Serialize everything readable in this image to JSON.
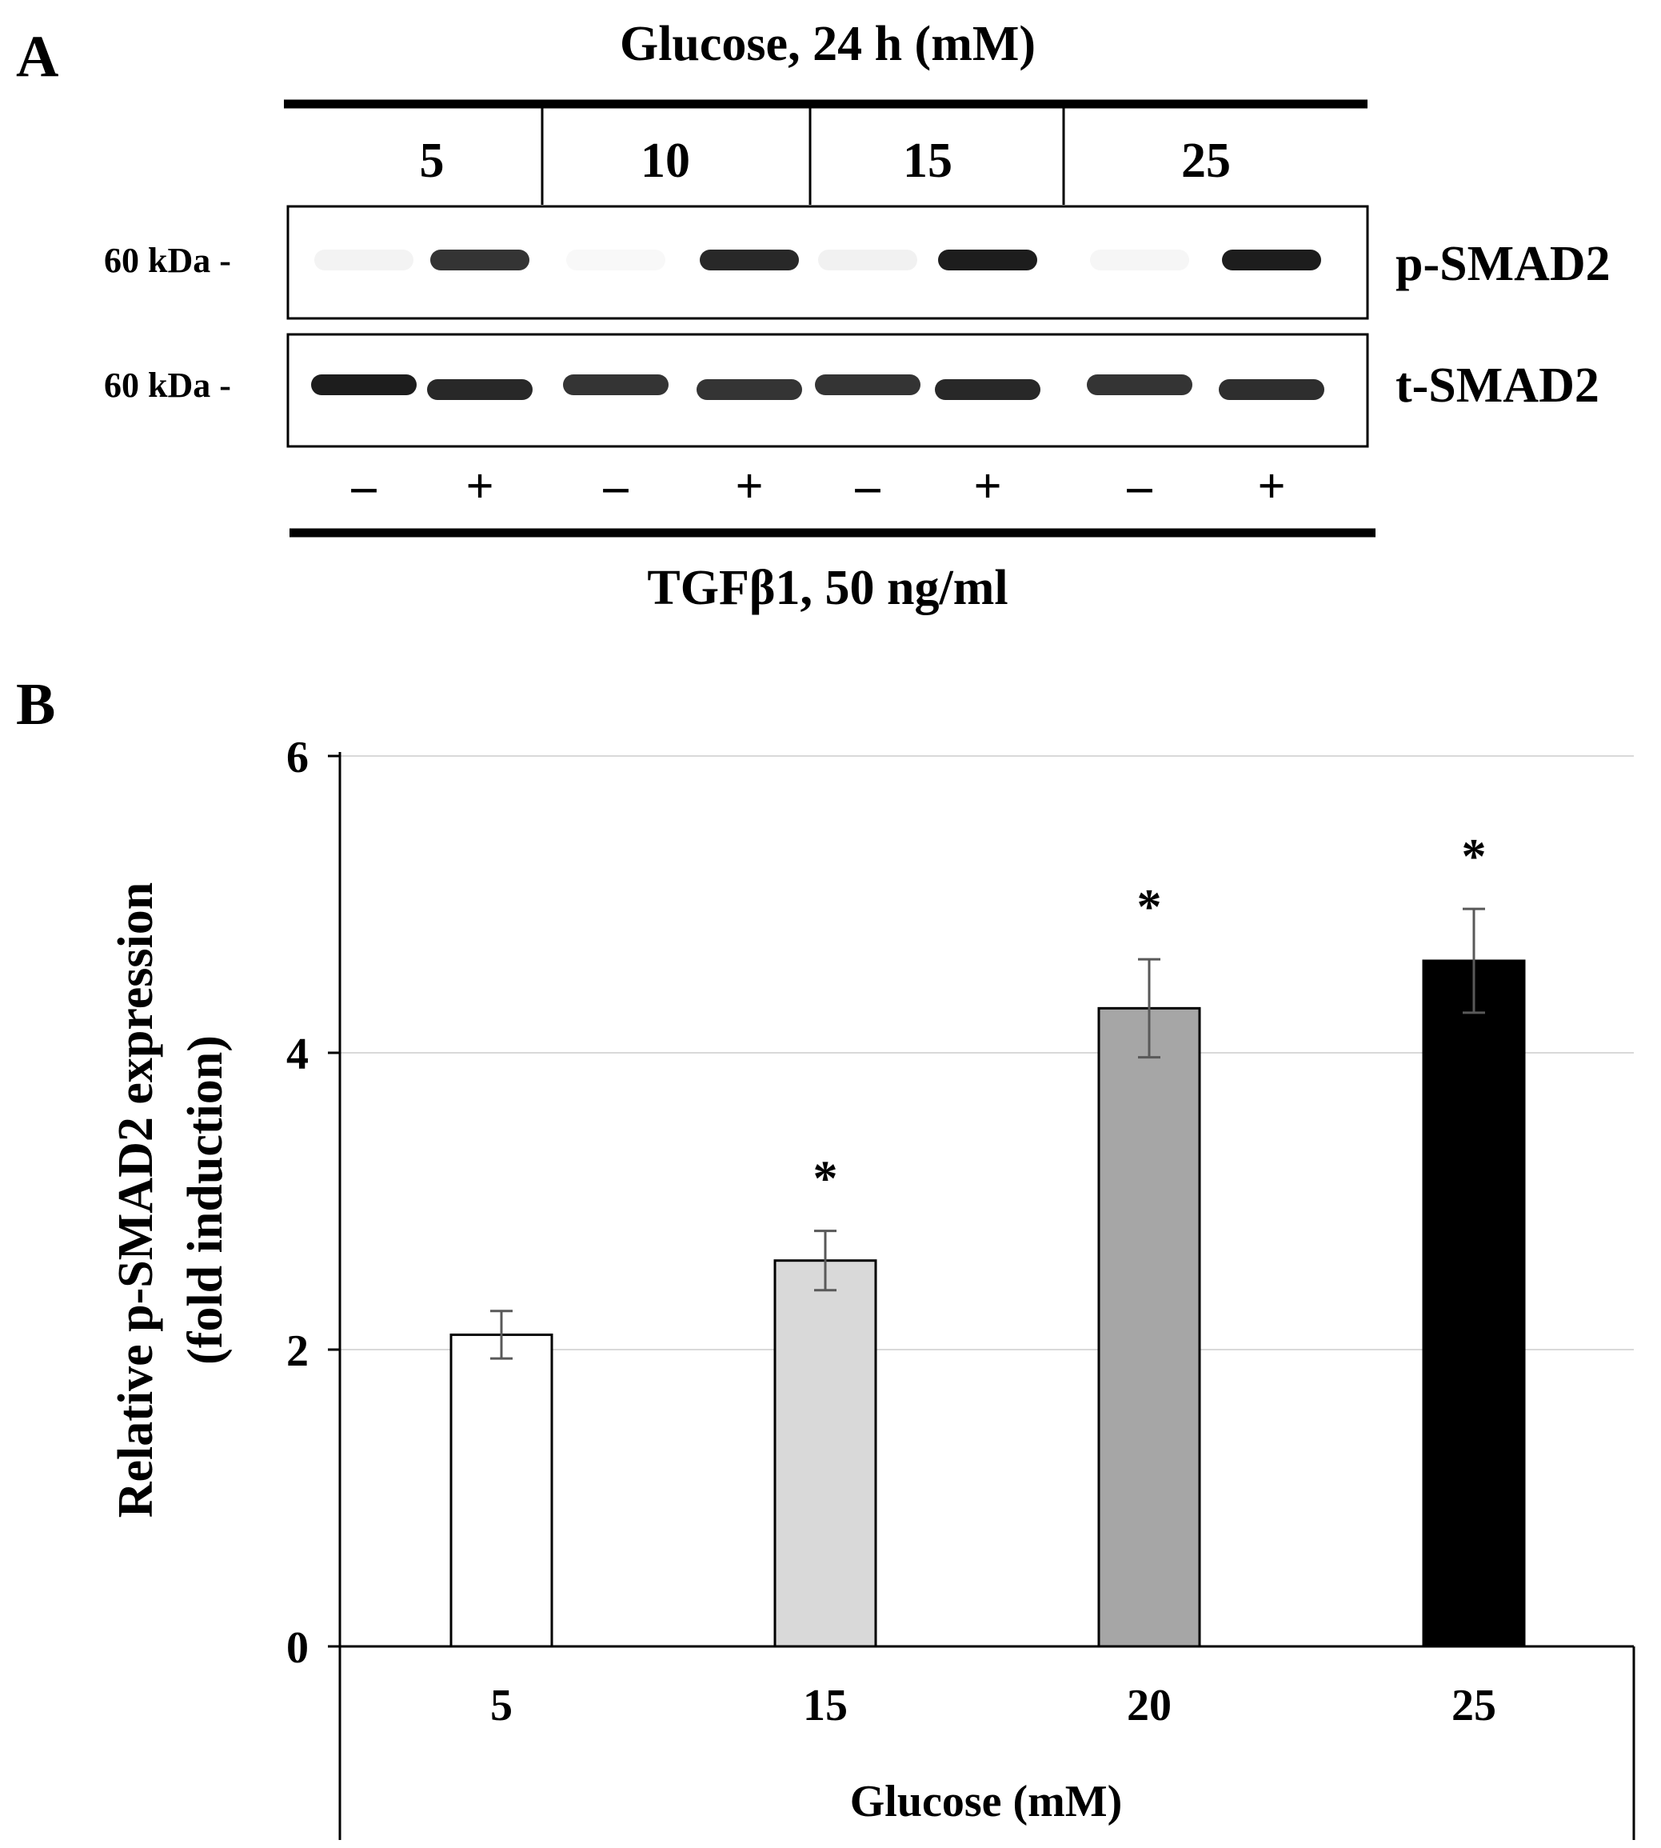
{
  "panel_a": {
    "label": "A",
    "top_title": "Glucose, 24 h (mM)",
    "glucose_groups": [
      "5",
      "10",
      "15",
      "25"
    ],
    "rows": [
      {
        "marker": "60 kDa -",
        "name": "p-SMAD2"
      },
      {
        "marker": "60 kDa -",
        "name": "t-SMAD2"
      }
    ],
    "lanes": [
      {
        "group": "5",
        "tgf": "–",
        "p_smad2": 0.05,
        "t_smad2": 0.95
      },
      {
        "group": "5",
        "tgf": "+",
        "p_smad2": 0.85,
        "t_smad2": 0.9
      },
      {
        "group": "10",
        "tgf": "–",
        "p_smad2": 0.03,
        "t_smad2": 0.85
      },
      {
        "group": "10",
        "tgf": "+",
        "p_smad2": 0.9,
        "t_smad2": 0.85
      },
      {
        "group": "15",
        "tgf": "–",
        "p_smad2": 0.06,
        "t_smad2": 0.85
      },
      {
        "group": "15",
        "tgf": "+",
        "p_smad2": 0.95,
        "t_smad2": 0.9
      },
      {
        "group": "25",
        "tgf": "–",
        "p_smad2": 0.04,
        "t_smad2": 0.85
      },
      {
        "group": "25",
        "tgf": "+",
        "p_smad2": 0.95,
        "t_smad2": 0.88
      }
    ],
    "bottom_title": "TGFβ1, 50 ng/ml"
  },
  "panel_b": {
    "label": "B"
  },
  "chart_data": {
    "type": "bar",
    "categories": [
      "5",
      "15",
      "20",
      "25"
    ],
    "values": [
      2.1,
      2.6,
      4.3,
      4.62
    ],
    "errors": [
      0.16,
      0.2,
      0.33,
      0.35
    ],
    "significance": [
      "",
      "*",
      "*",
      "*"
    ],
    "bar_colors": [
      "#ffffff",
      "#d9d9d9",
      "#a6a6a6",
      "#000000"
    ],
    "xlabel": "Glucose (mM)",
    "ylabel": [
      "Relative p-SMAD2 expression",
      "(fold induction)"
    ],
    "ylim": [
      0,
      6
    ],
    "yticks": [
      0,
      2,
      4,
      6
    ],
    "grid": true
  }
}
